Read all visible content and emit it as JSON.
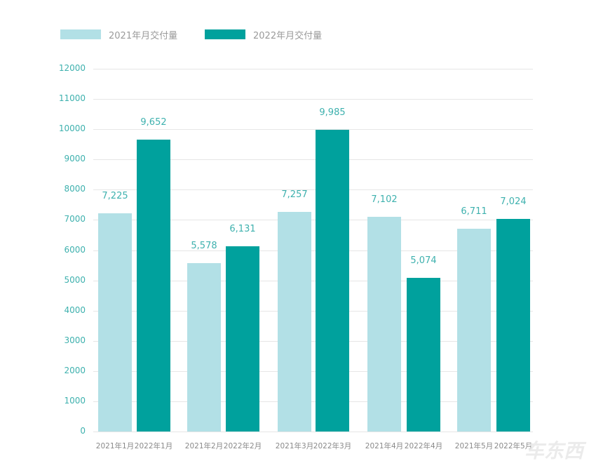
{
  "legend": [
    {
      "label": "2021年月交付量",
      "color": "#b2e0e6"
    },
    {
      "label": "2022年月交付量",
      "color": "#00a19d"
    }
  ],
  "y_ticks": [
    "0",
    "1000",
    "2000",
    "3000",
    "4000",
    "5000",
    "6000",
    "7000",
    "8000",
    "9000",
    "10000",
    "11000",
    "12000"
  ],
  "bars": [
    {
      "label": "2021年1月",
      "value": 7225,
      "value_label": "7,225",
      "series": 0
    },
    {
      "label": "2022年1月",
      "value": 9652,
      "value_label": "9,652",
      "series": 1
    },
    {
      "label": "2021年2月",
      "value": 5578,
      "value_label": "5,578",
      "series": 0
    },
    {
      "label": "2022年2月",
      "value": 6131,
      "value_label": "6,131",
      "series": 1
    },
    {
      "label": "2021年3月",
      "value": 7257,
      "value_label": "7,257",
      "series": 0
    },
    {
      "label": "2022年3月",
      "value": 9985,
      "value_label": "9,985",
      "series": 1
    },
    {
      "label": "2021年4月",
      "value": 7102,
      "value_label": "7,102",
      "series": 0
    },
    {
      "label": "2022年4月",
      "value": 5074,
      "value_label": "5,074",
      "series": 1
    },
    {
      "label": "2021年5月",
      "value": 6711,
      "value_label": "6,711",
      "series": 0
    },
    {
      "label": "2022年5月",
      "value": 7024,
      "value_label": "7,024",
      "series": 1
    }
  ],
  "watermark": "车东西",
  "chart_data": {
    "type": "bar",
    "title": "",
    "xlabel": "",
    "ylabel": "",
    "ylim": [
      0,
      12000
    ],
    "grid": true,
    "legend_position": "top-left",
    "categories": [
      "1月",
      "2月",
      "3月",
      "4月",
      "5月"
    ],
    "x_tick_labels": [
      "2021年1月",
      "2022年1月",
      "2021年2月",
      "2022年2月",
      "2021年3月",
      "2022年3月",
      "2021年4月",
      "2022年4月",
      "2021年5月",
      "2022年5月"
    ],
    "series": [
      {
        "name": "2021年月交付量",
        "color": "#b2e0e6",
        "values": [
          7225,
          5578,
          7257,
          7102,
          6711
        ]
      },
      {
        "name": "2022年月交付量",
        "color": "#00a19d",
        "values": [
          9652,
          6131,
          9985,
          5074,
          7024
        ]
      }
    ]
  }
}
